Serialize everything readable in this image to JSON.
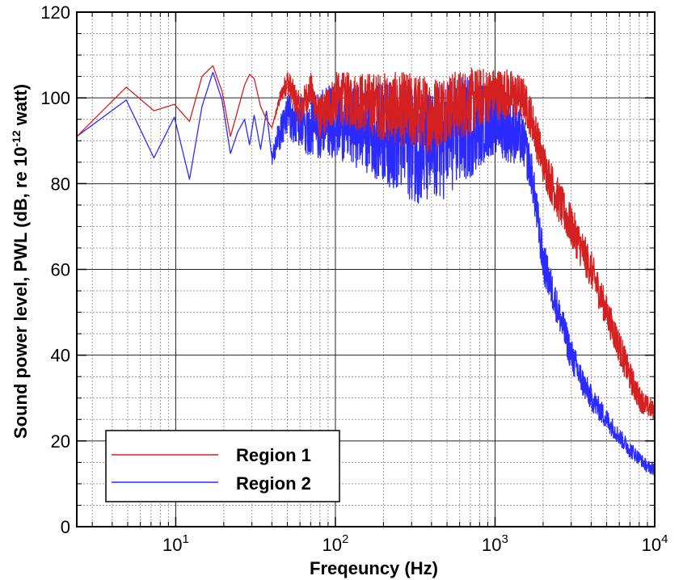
{
  "chart_data": {
    "type": "line",
    "xlabel": "Freqeuncy (Hz)",
    "ylabel_parts": [
      "Sound power level, PWL (dB, re 10",
      "-12",
      " watt)"
    ],
    "x_scale": "log",
    "xlim": [
      2.4,
      10000
    ],
    "ylim": [
      0,
      120
    ],
    "x_ticks": [
      {
        "base": "10",
        "exp": "1",
        "value": 10
      },
      {
        "base": "10",
        "exp": "2",
        "value": 100
      },
      {
        "base": "10",
        "exp": "3",
        "value": 1000
      },
      {
        "base": "10",
        "exp": "4",
        "value": 10000
      }
    ],
    "y_ticks": [
      "0",
      "20",
      "40",
      "60",
      "80",
      "100",
      "120"
    ],
    "grid": true,
    "legend": {
      "position": "bottom-left"
    },
    "series": [
      {
        "name": "Region 1",
        "color": "#d42020",
        "x": [
          2.4,
          4.9,
          7.3,
          9.8,
          12.2,
          14.6,
          17.1,
          19.5,
          22,
          24.4,
          27,
          29,
          31,
          34,
          37,
          40,
          45,
          50,
          60,
          70,
          80,
          100,
          150,
          200,
          300,
          400,
          500,
          700,
          800,
          1000,
          1200,
          1500,
          1700,
          2000,
          2500,
          3000,
          4000,
          5000,
          6000,
          7000,
          8000,
          9000,
          10000
        ],
        "y": [
          91,
          102.5,
          97,
          98.5,
          94.5,
          105,
          107.5,
          101.5,
          91,
          97,
          103,
          105.5,
          104.5,
          98,
          95,
          93,
          100,
          104,
          97,
          102,
          95,
          100,
          99,
          98,
          97,
          96,
          98,
          99,
          100,
          101,
          101,
          100,
          95,
          85,
          76,
          70,
          60,
          50,
          42,
          35,
          30,
          28,
          27
        ],
        "amp": [
          0,
          0,
          0,
          0,
          0,
          0,
          0,
          0,
          0,
          0,
          0,
          0,
          0,
          0,
          0,
          0,
          1.5,
          3,
          4,
          4,
          5,
          6,
          7,
          8,
          9,
          9,
          8,
          8,
          7,
          6,
          6,
          5,
          5,
          5,
          5,
          5,
          4.5,
          4,
          4,
          3.5,
          3,
          2.5,
          2
        ]
      },
      {
        "name": "Region 2",
        "color": "#2b2bff",
        "x": [
          2.4,
          4.9,
          7.3,
          9.8,
          12.2,
          14.6,
          17.1,
          19.5,
          22,
          24.4,
          27,
          29,
          31,
          34,
          37,
          40,
          45,
          50,
          60,
          70,
          80,
          100,
          150,
          200,
          300,
          400,
          500,
          700,
          800,
          1000,
          1200,
          1500,
          1700,
          2000,
          2500,
          3000,
          3500,
          4000,
          5000,
          6000,
          7000,
          8000,
          9000,
          10000
        ],
        "y": [
          91,
          99.5,
          86,
          95.5,
          81,
          98,
          106,
          99.5,
          87,
          92,
          95,
          89,
          96,
          88,
          97,
          86,
          92,
          96,
          94,
          93,
          94,
          95,
          93,
          92,
          90,
          88,
          91,
          93,
          94,
          95,
          93,
          90,
          82,
          62,
          50,
          40,
          34,
          30,
          25,
          21,
          18,
          16,
          14,
          13.5
        ],
        "amp": [
          0,
          0,
          0,
          0,
          0,
          0,
          0,
          0,
          0,
          0,
          0,
          0,
          0,
          0,
          0,
          2,
          4,
          5,
          6,
          7,
          8,
          9,
          10,
          12,
          14,
          14,
          14,
          12,
          10,
          8,
          8,
          6,
          5,
          5,
          4,
          4,
          3.5,
          3,
          2.5,
          2,
          2,
          1.5,
          1.5,
          1.5
        ]
      }
    ]
  }
}
